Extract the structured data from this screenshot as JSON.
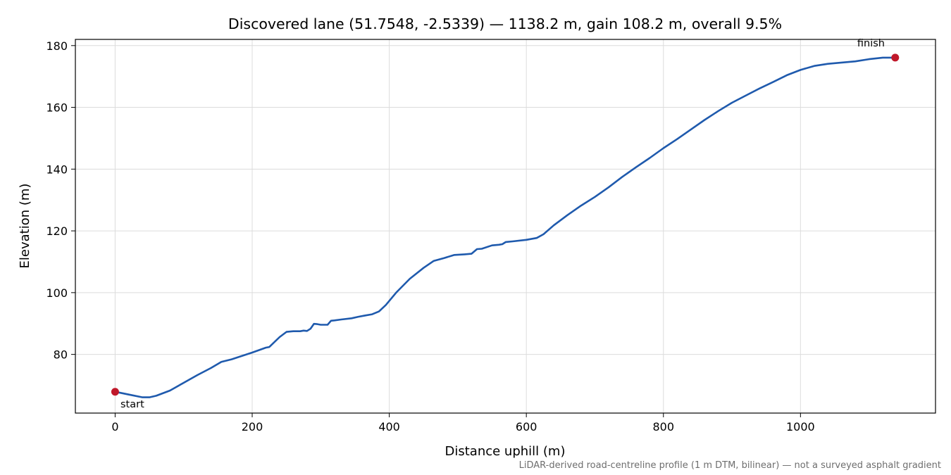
{
  "chart_data": {
    "type": "line",
    "title": "Discovered lane (51.7548, -2.5339) — 1138.2 m, gain 108.2 m, overall 9.5%",
    "xlabel": "Distance uphill (m)",
    "ylabel": "Elevation (m)",
    "xlim": [
      -58,
      1197
    ],
    "ylim": [
      61,
      182
    ],
    "x_ticks": [
      0,
      200,
      400,
      600,
      800,
      1000
    ],
    "y_ticks": [
      80,
      100,
      120,
      140,
      160,
      180
    ],
    "grid": true,
    "line_color": "#1f5aad",
    "marker_color": "#c0182a",
    "series": [
      {
        "x": [
          0,
          20,
          40,
          50,
          60,
          80,
          100,
          120,
          140,
          155,
          170,
          200,
          220,
          225,
          240,
          250,
          260,
          270,
          275,
          280,
          285,
          290,
          295,
          300,
          310,
          315,
          320,
          330,
          345,
          355,
          365,
          375,
          385,
          395,
          410,
          430,
          450,
          465,
          480,
          495,
          510,
          520,
          528,
          535,
          550,
          560,
          565,
          570,
          580,
          600,
          615,
          625,
          640,
          660,
          680,
          700,
          720,
          740,
          760,
          780,
          800,
          820,
          840,
          860,
          880,
          900,
          920,
          940,
          960,
          980,
          1000,
          1020,
          1040,
          1060,
          1080,
          1100,
          1120,
          1138.2
        ],
        "y": [
          67.9,
          67.0,
          66.1,
          66.1,
          66.6,
          68.3,
          70.8,
          73.3,
          75.6,
          77.6,
          78.4,
          80.6,
          82.2,
          82.4,
          85.6,
          87.3,
          87.5,
          87.5,
          87.7,
          87.6,
          88.3,
          89.9,
          89.8,
          89.6,
          89.6,
          90.9,
          91.0,
          91.3,
          91.7,
          92.2,
          92.6,
          93.0,
          93.9,
          96.0,
          100.0,
          104.5,
          108.0,
          110.3,
          111.2,
          112.2,
          112.4,
          112.6,
          114.1,
          114.2,
          115.3,
          115.5,
          115.7,
          116.4,
          116.6,
          117.1,
          117.7,
          118.9,
          121.8,
          125.1,
          128.2,
          131.0,
          134.1,
          137.5,
          140.6,
          143.6,
          146.8,
          149.7,
          152.8,
          155.9,
          158.8,
          161.5,
          163.8,
          166.1,
          168.2,
          170.4,
          172.1,
          173.4,
          174.1,
          174.5,
          174.9,
          175.6,
          176.1,
          176.1
        ]
      }
    ],
    "annotations": {
      "start": {
        "label": "start",
        "x": 0,
        "y": 67.9
      },
      "finish": {
        "label": "finish",
        "x": 1138.2,
        "y": 176.1
      }
    },
    "footnote": "LiDAR-derived road-centreline profile (1 m DTM, bilinear) — not a surveyed asphalt gradient"
  }
}
